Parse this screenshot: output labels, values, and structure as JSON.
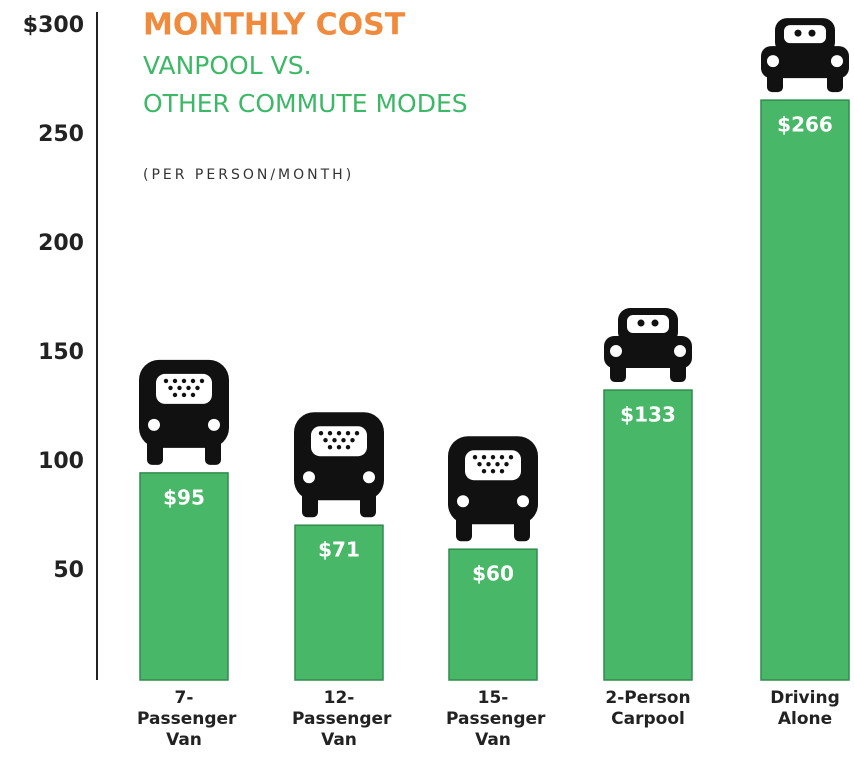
{
  "chart_data": {
    "type": "bar",
    "title": "MONTHLY COST",
    "subtitle": [
      "VANPOOL VS.",
      "OTHER COMMUTE MODES"
    ],
    "note": "(PER PERSON/MONTH)",
    "categories": [
      "7-Passenger Van",
      "12-Passenger Van",
      "15-Passenger Van",
      "2-Person Carpool",
      "Driving Alone"
    ],
    "values": [
      95,
      71,
      60,
      133,
      266
    ],
    "value_labels": [
      "$95",
      "$71",
      "$60",
      "$133",
      "$266"
    ],
    "color": "#48b868",
    "ylim": [
      0,
      300
    ],
    "yticks": [
      50,
      100,
      150,
      200,
      250,
      {
        "value": 300,
        "label": "$300"
      }
    ]
  }
}
